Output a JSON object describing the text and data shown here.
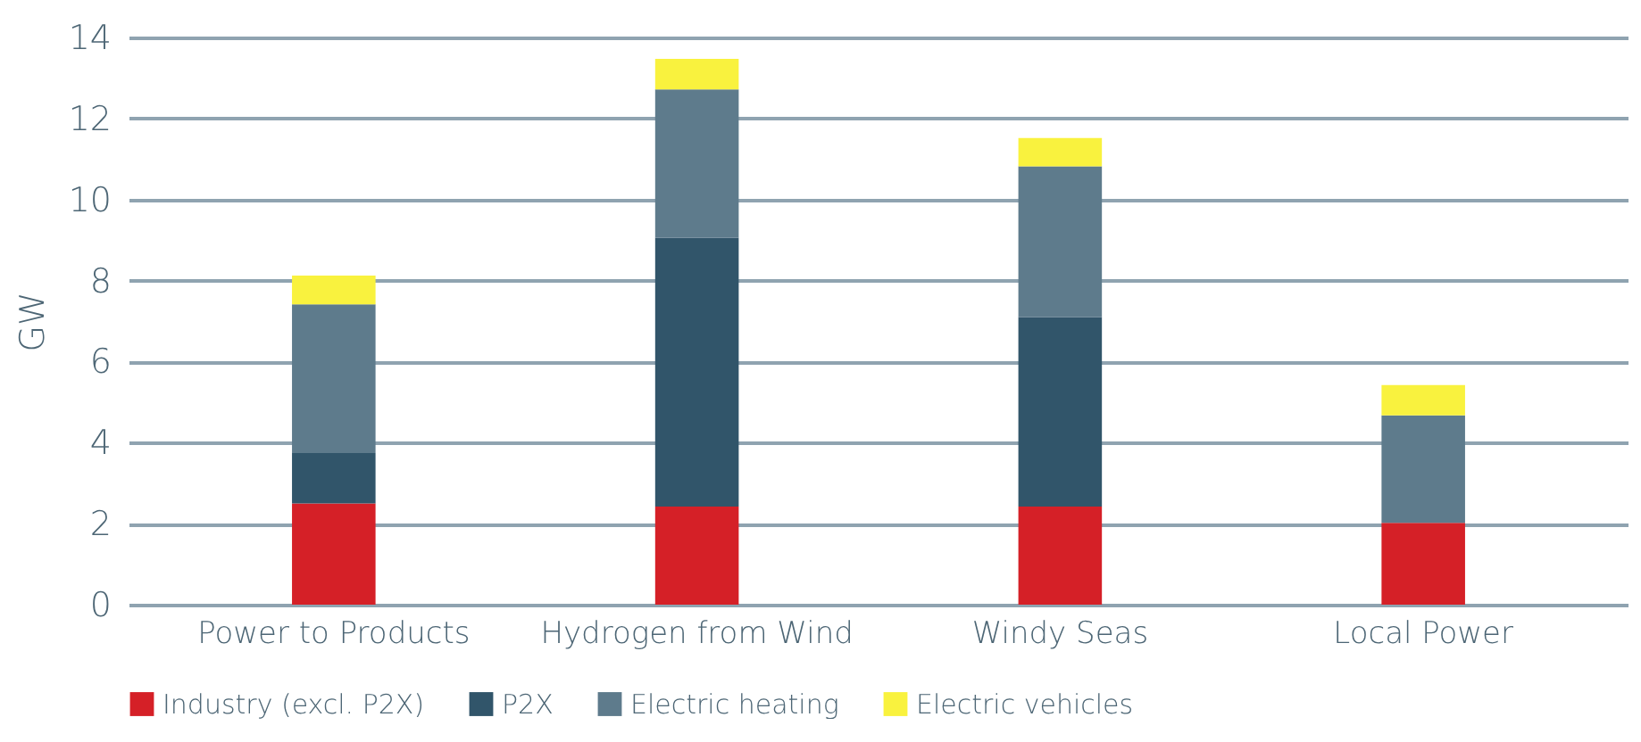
{
  "chart_data": {
    "type": "bar",
    "stacked": true,
    "ylabel": "GW",
    "categories": [
      "Power to Products",
      "Hydrogen from Wind",
      "Windy Seas",
      "Local Power"
    ],
    "series": [
      {
        "name": "Industry (excl. P2X)",
        "color": "#d52027",
        "values": [
          2.5,
          2.42,
          2.42,
          2.02
        ]
      },
      {
        "name": "P2X",
        "color": "#31556a",
        "values": [
          1.24,
          6.63,
          4.68,
          0
        ]
      },
      {
        "name": "Electric heating",
        "color": "#5e7b8c",
        "values": [
          3.67,
          3.67,
          3.72,
          2.65
        ]
      },
      {
        "name": "Electric vehicles",
        "color": "#f9f23e",
        "values": [
          0.71,
          0.75,
          0.7,
          0.75
        ]
      }
    ],
    "ylim": [
      0,
      14
    ],
    "yticks": [
      0,
      2,
      4,
      6,
      8,
      10,
      12,
      14
    ],
    "grid": "y",
    "legend": "bottom"
  }
}
